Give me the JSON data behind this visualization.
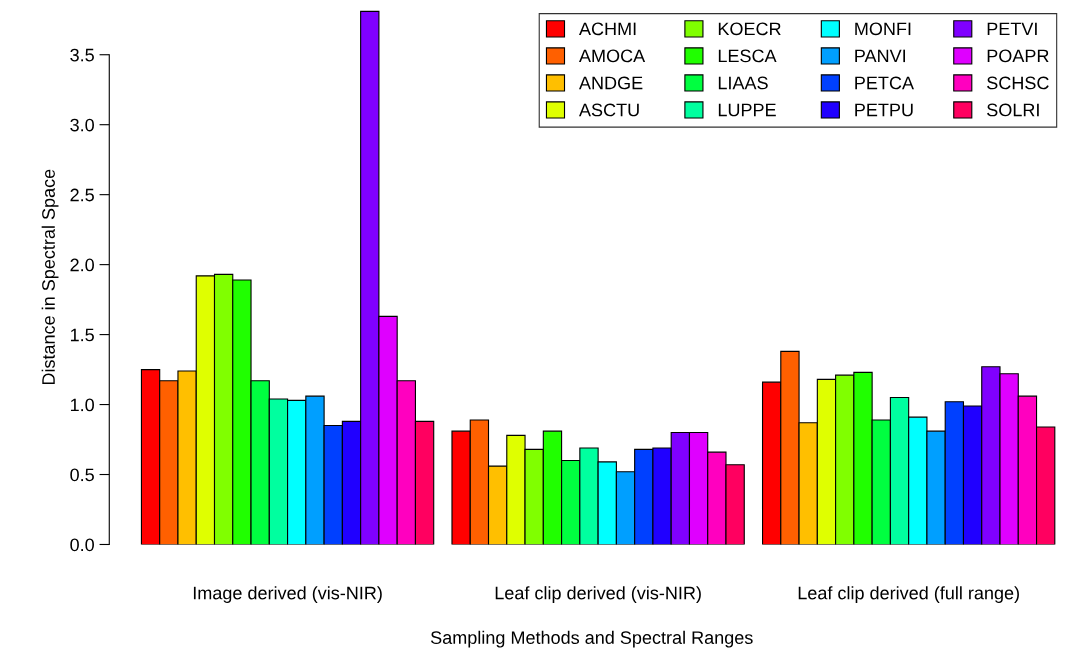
{
  "chart_data": {
    "type": "bar",
    "xlabel": "Sampling Methods and Spectral Ranges",
    "ylabel": "Distance in Spectral Space",
    "categories": [
      "Image derived (vis-NIR)",
      "Leaf clip derived (vis-NIR)",
      "Leaf clip derived (full range)"
    ],
    "series": [
      {
        "name": "ACHMI",
        "color": "#ff0000",
        "values": [
          1.25,
          0.81,
          1.16
        ]
      },
      {
        "name": "AMOCA",
        "color": "#ff6000",
        "values": [
          1.17,
          0.89,
          1.38
        ]
      },
      {
        "name": "ANDGE",
        "color": "#ffbf00",
        "values": [
          1.24,
          0.56,
          0.87
        ]
      },
      {
        "name": "ASCTU",
        "color": "#dfff00",
        "values": [
          1.92,
          0.78,
          1.18
        ]
      },
      {
        "name": "KOECR",
        "color": "#80ff00",
        "values": [
          1.93,
          0.68,
          1.21
        ]
      },
      {
        "name": "LESCA",
        "color": "#20ff00",
        "values": [
          1.89,
          0.81,
          1.23
        ]
      },
      {
        "name": "LIAAS",
        "color": "#00ff40",
        "values": [
          1.17,
          0.6,
          0.89
        ]
      },
      {
        "name": "LUPPE",
        "color": "#00ff9f",
        "values": [
          1.04,
          0.69,
          1.05
        ]
      },
      {
        "name": "MONFI",
        "color": "#00ffff",
        "values": [
          1.03,
          0.59,
          0.91
        ]
      },
      {
        "name": "PANVI",
        "color": "#009fff",
        "values": [
          1.06,
          0.52,
          0.81
        ]
      },
      {
        "name": "PETCA",
        "color": "#0040ff",
        "values": [
          0.85,
          0.68,
          1.02
        ]
      },
      {
        "name": "PETPU",
        "color": "#2000ff",
        "values": [
          0.88,
          0.69,
          0.99
        ]
      },
      {
        "name": "PETVI",
        "color": "#8000ff",
        "values": [
          3.81,
          0.8,
          1.27
        ]
      },
      {
        "name": "POAPR",
        "color": "#df00ff",
        "values": [
          1.63,
          0.8,
          1.22
        ]
      },
      {
        "name": "SCHSC",
        "color": "#ff00bf",
        "values": [
          1.17,
          0.66,
          1.06
        ]
      },
      {
        "name": "SOLRI",
        "color": "#ff0060",
        "values": [
          0.88,
          0.57,
          0.84
        ]
      }
    ],
    "ylim": [
      0,
      3.82
    ],
    "yticks": [
      {
        "value": 0,
        "label": "0.0"
      },
      {
        "value": 0.5,
        "label": "0.5"
      },
      {
        "value": 1,
        "label": "1.0"
      },
      {
        "value": 1.5,
        "label": "1.5"
      },
      {
        "value": 2,
        "label": "2.0"
      },
      {
        "value": 2.5,
        "label": "2.5"
      },
      {
        "value": 3,
        "label": "3.0"
      },
      {
        "value": 3.5,
        "label": "3.5"
      }
    ],
    "grid": false,
    "legend": "top right"
  }
}
